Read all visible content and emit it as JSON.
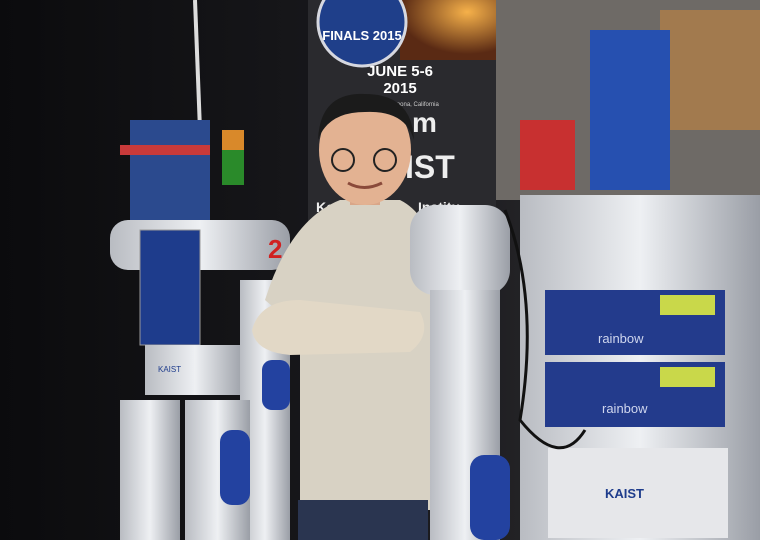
{
  "banner": {
    "title": "FINALS 2015",
    "date": "JUNE 5-6",
    "year": "2015",
    "location": "Fairplex · Pomona, California",
    "line1": "m",
    "line2": "IST",
    "line3": "Ko",
    "line4": "Institu"
  },
  "robot_labels": {
    "number": "2",
    "kaist_left": "KAIST",
    "kaist_right": "KAIST",
    "brand_top": "rainbow",
    "brand_bottom": "rainbow"
  }
}
